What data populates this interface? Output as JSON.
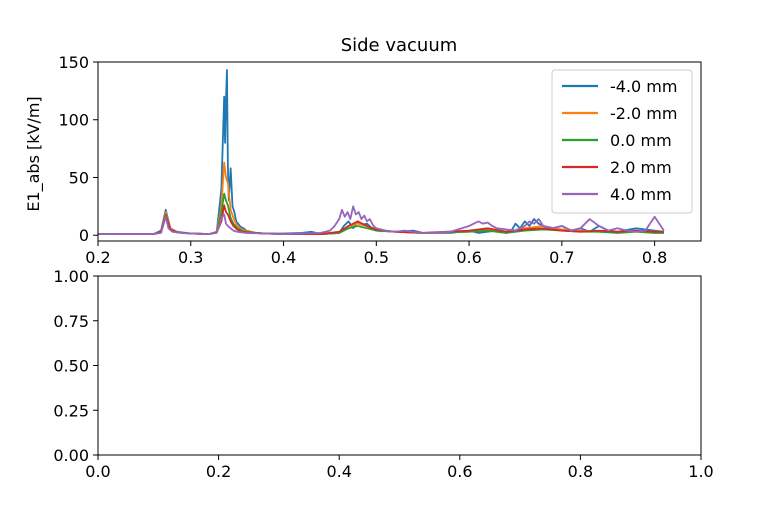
{
  "chart_data": [
    {
      "type": "line",
      "title": "Side vacuum",
      "xlabel": "",
      "ylabel": "E1_abs [kV/m]",
      "xlim": [
        0.2,
        0.85
      ],
      "ylim": [
        -5,
        150
      ],
      "xticks": [
        0.2,
        0.3,
        0.4,
        0.5,
        0.6,
        0.7,
        0.8
      ],
      "xtick_labels": [
        "0.2",
        "0.3",
        "0.4",
        "0.5",
        "0.6",
        "0.7",
        "0.8"
      ],
      "yticks": [
        0,
        50,
        100,
        150
      ],
      "ytick_labels": [
        "0",
        "50",
        "100",
        "150"
      ],
      "grid": false,
      "legend_position": "upper right",
      "series": [
        {
          "name": "-4.0 mm",
          "color": "#1f77b4",
          "x": [
            0.2,
            0.26,
            0.268,
            0.273,
            0.278,
            0.285,
            0.3,
            0.32,
            0.328,
            0.333,
            0.336,
            0.337,
            0.338,
            0.339,
            0.34,
            0.341,
            0.343,
            0.345,
            0.347,
            0.349,
            0.351,
            0.354,
            0.357,
            0.36,
            0.365,
            0.37,
            0.38,
            0.4,
            0.42,
            0.43,
            0.44,
            0.46,
            0.465,
            0.47,
            0.475,
            0.48,
            0.485,
            0.49,
            0.495,
            0.5,
            0.52,
            0.54,
            0.55,
            0.58,
            0.6,
            0.61,
            0.62,
            0.63,
            0.64,
            0.645,
            0.65,
            0.655,
            0.66,
            0.665,
            0.67,
            0.675,
            0.68,
            0.69,
            0.7,
            0.71,
            0.72,
            0.73,
            0.74,
            0.75,
            0.76,
            0.78,
            0.8,
            0.81
          ],
          "y": [
            1,
            1,
            4,
            22,
            6,
            3,
            1.5,
            1,
            3,
            40,
            120,
            80,
            118,
            143,
            60,
            30,
            58,
            25,
            20,
            12,
            10,
            7,
            6,
            4,
            3,
            2,
            1.5,
            1.5,
            2,
            3,
            1,
            2,
            8,
            12,
            6,
            12,
            9,
            10,
            6,
            4,
            3,
            4,
            2,
            2,
            4,
            2,
            3,
            4,
            2,
            3,
            10,
            6,
            12,
            8,
            14,
            10,
            8,
            6,
            8,
            4,
            6,
            3,
            8,
            4,
            3,
            6,
            4,
            3
          ]
        },
        {
          "name": "-2.0 mm",
          "color": "#ff7f0e",
          "x": [
            0.2,
            0.26,
            0.268,
            0.273,
            0.278,
            0.285,
            0.3,
            0.32,
            0.328,
            0.333,
            0.336,
            0.338,
            0.34,
            0.343,
            0.346,
            0.35,
            0.355,
            0.36,
            0.37,
            0.38,
            0.4,
            0.44,
            0.46,
            0.47,
            0.48,
            0.49,
            0.5,
            0.52,
            0.55,
            0.6,
            0.62,
            0.64,
            0.66,
            0.68,
            0.7,
            0.72,
            0.74,
            0.76,
            0.78,
            0.8,
            0.81
          ],
          "y": [
            1,
            1,
            3,
            20,
            6,
            2.5,
            1.5,
            1,
            3,
            25,
            63,
            50,
            45,
            22,
            15,
            8,
            5,
            4,
            2,
            1.5,
            1,
            1,
            2,
            8,
            10,
            8,
            4,
            3,
            2,
            3,
            5,
            3,
            6,
            8,
            5,
            4,
            3,
            3,
            4,
            3,
            3
          ]
        },
        {
          "name": "0.0 mm",
          "color": "#2ca02c",
          "x": [
            0.2,
            0.26,
            0.268,
            0.273,
            0.278,
            0.285,
            0.3,
            0.32,
            0.328,
            0.333,
            0.336,
            0.338,
            0.34,
            0.343,
            0.346,
            0.35,
            0.355,
            0.36,
            0.37,
            0.38,
            0.4,
            0.44,
            0.46,
            0.47,
            0.48,
            0.49,
            0.5,
            0.52,
            0.55,
            0.6,
            0.62,
            0.64,
            0.66,
            0.68,
            0.7,
            0.72,
            0.74,
            0.76,
            0.78,
            0.8,
            0.81
          ],
          "y": [
            1,
            1,
            3,
            18,
            5,
            2.5,
            1.5,
            1,
            2.5,
            20,
            36,
            30,
            26,
            15,
            10,
            6,
            4,
            3,
            2,
            1.5,
            1,
            1,
            2,
            6,
            8,
            6,
            4,
            3,
            2,
            3,
            4,
            2,
            4,
            5,
            4,
            3,
            3,
            2,
            3,
            2,
            2
          ]
        },
        {
          "name": "2.0 mm",
          "color": "#d62728",
          "x": [
            0.2,
            0.26,
            0.268,
            0.273,
            0.278,
            0.285,
            0.3,
            0.32,
            0.328,
            0.333,
            0.336,
            0.338,
            0.34,
            0.343,
            0.346,
            0.35,
            0.355,
            0.36,
            0.37,
            0.38,
            0.4,
            0.44,
            0.46,
            0.47,
            0.48,
            0.49,
            0.5,
            0.52,
            0.55,
            0.6,
            0.62,
            0.64,
            0.66,
            0.68,
            0.7,
            0.72,
            0.74,
            0.76,
            0.78,
            0.8,
            0.81
          ],
          "y": [
            1,
            1,
            3,
            17,
            5,
            2.5,
            1.5,
            1,
            2.5,
            12,
            26,
            20,
            18,
            12,
            8,
            5,
            3,
            2.5,
            2,
            1.5,
            1,
            1,
            3,
            8,
            12,
            8,
            5,
            3,
            2,
            4,
            6,
            3,
            5,
            6,
            4,
            3,
            4,
            3,
            4,
            3,
            3
          ]
        },
        {
          "name": "4.0 mm",
          "color": "#9467bd",
          "x": [
            0.2,
            0.26,
            0.268,
            0.273,
            0.276,
            0.28,
            0.29,
            0.3,
            0.32,
            0.328,
            0.333,
            0.336,
            0.338,
            0.34,
            0.343,
            0.346,
            0.35,
            0.36,
            0.38,
            0.4,
            0.42,
            0.44,
            0.45,
            0.455,
            0.46,
            0.463,
            0.466,
            0.469,
            0.472,
            0.475,
            0.478,
            0.481,
            0.484,
            0.487,
            0.49,
            0.493,
            0.497,
            0.5,
            0.51,
            0.52,
            0.53,
            0.54,
            0.55,
            0.56,
            0.58,
            0.6,
            0.605,
            0.61,
            0.615,
            0.62,
            0.625,
            0.63,
            0.64,
            0.65,
            0.66,
            0.665,
            0.67,
            0.675,
            0.68,
            0.69,
            0.7,
            0.71,
            0.72,
            0.73,
            0.74,
            0.75,
            0.76,
            0.77,
            0.78,
            0.79,
            0.8,
            0.81
          ],
          "y": [
            1,
            1,
            2,
            16,
            6,
            3,
            2,
            1.5,
            1,
            2,
            15,
            18,
            10,
            8,
            6,
            4,
            3,
            2,
            1.5,
            1,
            1.5,
            2,
            4,
            8,
            14,
            22,
            16,
            20,
            14,
            25,
            18,
            20,
            14,
            17,
            12,
            14,
            8,
            6,
            4,
            3,
            4,
            3,
            2,
            2,
            3,
            8,
            10,
            12,
            10,
            11,
            8,
            6,
            5,
            4,
            8,
            12,
            10,
            14,
            8,
            6,
            8,
            4,
            6,
            14,
            8,
            4,
            6,
            4,
            3,
            4,
            16,
            4
          ]
        }
      ]
    },
    {
      "type": "line",
      "title": "",
      "xlabel": "",
      "ylabel": "",
      "xlim": [
        0,
        1
      ],
      "ylim": [
        0,
        1
      ],
      "xticks": [
        0,
        0.2,
        0.4,
        0.6,
        0.8,
        1.0
      ],
      "xtick_labels": [
        "0.0",
        "0.2",
        "0.4",
        "0.6",
        "0.8",
        "1.0"
      ],
      "yticks": [
        0,
        0.25,
        0.5,
        0.75,
        1.0
      ],
      "ytick_labels": [
        "0.00",
        "0.25",
        "0.50",
        "0.75",
        "1.00"
      ],
      "grid": false,
      "series": []
    }
  ]
}
